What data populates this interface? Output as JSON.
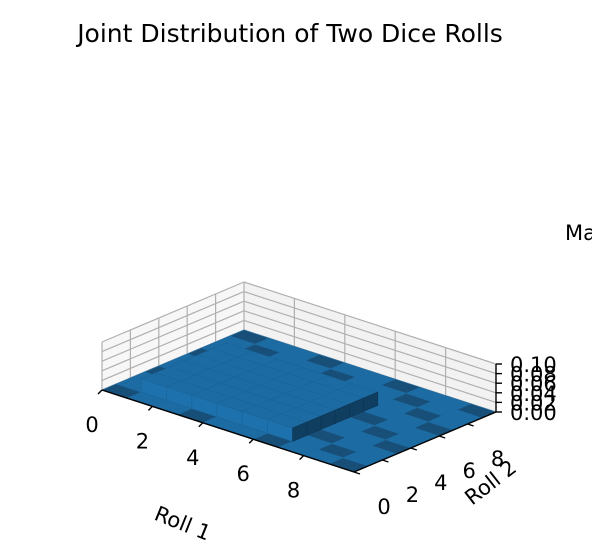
{
  "chart_data": {
    "type": "bar3d",
    "title": "Joint Distribution of Two Dice Rolls",
    "xlabel": "Roll 1",
    "ylabel": "Roll 2",
    "zlabel": "Ma",
    "x_ticks": [
      "0",
      "2",
      "4",
      "6",
      "8"
    ],
    "y_ticks": [
      "0",
      "2",
      "4",
      "6",
      "8"
    ],
    "z_ticks": [
      "0.00",
      "0.02",
      "0.04",
      "0.06",
      "0.08",
      "0.10"
    ],
    "xlim": [
      0,
      10
    ],
    "ylim": [
      0,
      10
    ],
    "zlim": [
      0,
      0.1
    ],
    "roll_1_values": [
      1,
      2,
      3,
      4,
      5,
      6
    ],
    "roll_2_values": [
      1,
      2,
      3,
      4,
      5,
      6
    ],
    "cell_probability": 0.0278,
    "color": "#1f77b4",
    "grid": true
  }
}
